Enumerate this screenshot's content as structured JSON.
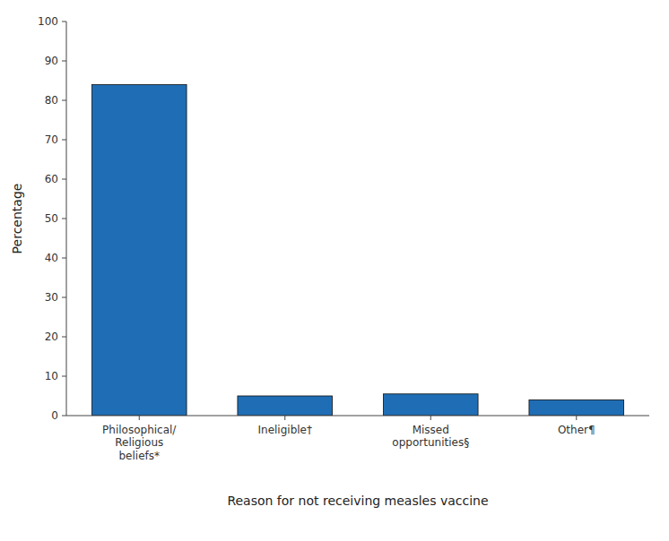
{
  "chart_data": {
    "type": "bar",
    "categories": [
      "Philosophical/\nReligious\nbeliefs*",
      "Ineligible†",
      "Missed\nopportunities§",
      "Other¶"
    ],
    "values": [
      84,
      5,
      5.5,
      4
    ],
    "color": "#1F6EB5",
    "xlabel": "Reason for not receiving measles vaccine",
    "ylabel": "Percentage",
    "ylim": [
      0,
      100
    ],
    "yticks": [
      0,
      10,
      20,
      30,
      40,
      50,
      60,
      70,
      80,
      90,
      100
    ],
    "grid": false
  }
}
